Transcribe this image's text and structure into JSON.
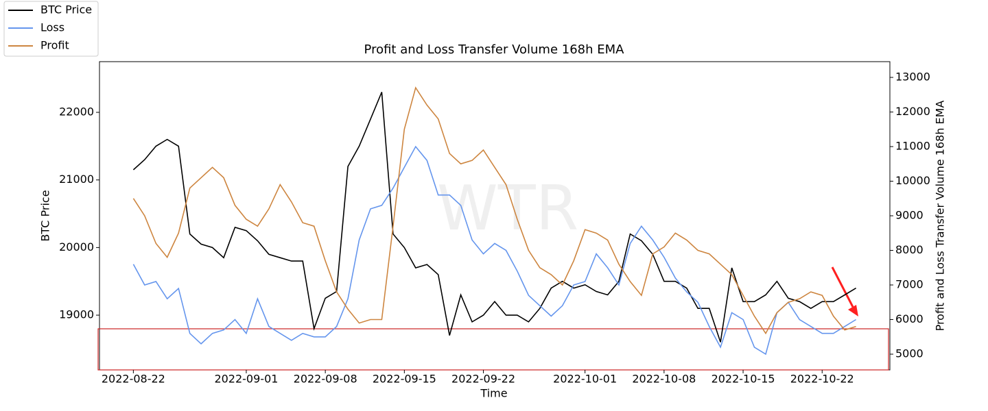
{
  "chart_data": {
    "type": "line",
    "title": "Profit and Loss Transfer Volume 168h EMA",
    "xlabel": "Time",
    "ylabel": "BTC Price",
    "y2label": "Profit and Loss Transfer Volume 168h EMA",
    "watermark": "WTR",
    "legend": "upper left",
    "x": [
      "2022-08-22",
      "2022-08-23",
      "2022-08-24",
      "2022-08-25",
      "2022-08-26",
      "2022-08-27",
      "2022-08-28",
      "2022-08-29",
      "2022-08-30",
      "2022-08-31",
      "2022-09-01",
      "2022-09-02",
      "2022-09-03",
      "2022-09-04",
      "2022-09-05",
      "2022-09-06",
      "2022-09-07",
      "2022-09-08",
      "2022-09-09",
      "2022-09-10",
      "2022-09-11",
      "2022-09-12",
      "2022-09-13",
      "2022-09-14",
      "2022-09-15",
      "2022-09-16",
      "2022-09-17",
      "2022-09-18",
      "2022-09-19",
      "2022-09-20",
      "2022-09-21",
      "2022-09-22",
      "2022-09-23",
      "2022-09-24",
      "2022-09-25",
      "2022-09-26",
      "2022-09-27",
      "2022-09-28",
      "2022-09-29",
      "2022-09-30",
      "2022-10-01",
      "2022-10-02",
      "2022-10-03",
      "2022-10-04",
      "2022-10-05",
      "2022-10-06",
      "2022-10-07",
      "2022-10-08",
      "2022-10-09",
      "2022-10-10",
      "2022-10-11",
      "2022-10-12",
      "2022-10-13",
      "2022-10-14",
      "2022-10-15",
      "2022-10-16",
      "2022-10-17",
      "2022-10-18",
      "2022-10-19",
      "2022-10-20",
      "2022-10-21",
      "2022-10-22",
      "2022-10-23",
      "2022-10-24",
      "2022-10-25"
    ],
    "series": [
      {
        "name": "BTC Price",
        "color": "#000000",
        "axis": "y",
        "values": [
          21150,
          21300,
          21500,
          21600,
          21500,
          20200,
          20050,
          20000,
          19850,
          20300,
          20250,
          20100,
          19900,
          19850,
          19800,
          19800,
          18800,
          19250,
          19350,
          21200,
          21500,
          21900,
          22300,
          20200,
          20000,
          19700,
          19750,
          19600,
          18700,
          19300,
          18900,
          19000,
          19200,
          19000,
          19000,
          18900,
          19100,
          19400,
          19500,
          19400,
          19450,
          19350,
          19300,
          19500,
          20200,
          20100,
          19900,
          19500,
          19500,
          19400,
          19100,
          19100,
          18600,
          19700,
          19200,
          19200,
          19300,
          19500,
          19250,
          19200,
          19100,
          19200,
          19200,
          19300,
          19400
        ]
      },
      {
        "name": "Loss",
        "color": "#6495ed",
        "axis": "y2",
        "values": [
          7600,
          7000,
          7100,
          6600,
          6900,
          5600,
          5300,
          5600,
          5700,
          6000,
          5600,
          6600,
          5800,
          5600,
          5400,
          5600,
          5500,
          5500,
          5800,
          6600,
          8300,
          9200,
          9300,
          9800,
          10400,
          11000,
          10600,
          9600,
          9600,
          9300,
          8300,
          7900,
          8200,
          8000,
          7400,
          6700,
          6400,
          6100,
          6400,
          7000,
          7100,
          7900,
          7500,
          7000,
          8200,
          8700,
          8300,
          7800,
          7200,
          6800,
          6500,
          5800,
          5200,
          6200,
          6000,
          5200,
          5000,
          6200,
          6500,
          6000,
          5800,
          5600,
          5600,
          5800,
          6000
        ]
      },
      {
        "name": "Profit",
        "color": "#cd853f",
        "axis": "y2",
        "values": [
          9500,
          9000,
          8200,
          7800,
          8500,
          9800,
          10100,
          10400,
          10100,
          9300,
          8900,
          8700,
          9200,
          9900,
          9400,
          8800,
          8700,
          7700,
          6800,
          6300,
          5900,
          6000,
          6000,
          8700,
          11500,
          12700,
          12200,
          11800,
          10800,
          10500,
          10600,
          10900,
          10400,
          9900,
          8900,
          8000,
          7500,
          7300,
          7000,
          7700,
          8600,
          8500,
          8300,
          7600,
          7100,
          6700,
          7900,
          8100,
          8500,
          8300,
          8000,
          7900,
          7600,
          7300,
          6700,
          6100,
          5600,
          6200,
          6500,
          6600,
          6800,
          6700,
          6100,
          5700,
          5800
        ]
      }
    ],
    "xlim": [
      "2022-08-19",
      "2022-10-28"
    ],
    "xticks": [
      "2022-08-22",
      "2022-09-01",
      "2022-09-08",
      "2022-09-15",
      "2022-09-22",
      "2022-10-01",
      "2022-10-08",
      "2022-10-15",
      "2022-10-22"
    ],
    "ylim": [
      18190,
      22750
    ],
    "yticks": [
      19000,
      20000,
      21000,
      22000
    ],
    "y2lim": [
      4545,
      13455
    ],
    "y2ticks": [
      5000,
      6000,
      7000,
      8000,
      9000,
      10000,
      11000,
      12000,
      13000
    ]
  }
}
